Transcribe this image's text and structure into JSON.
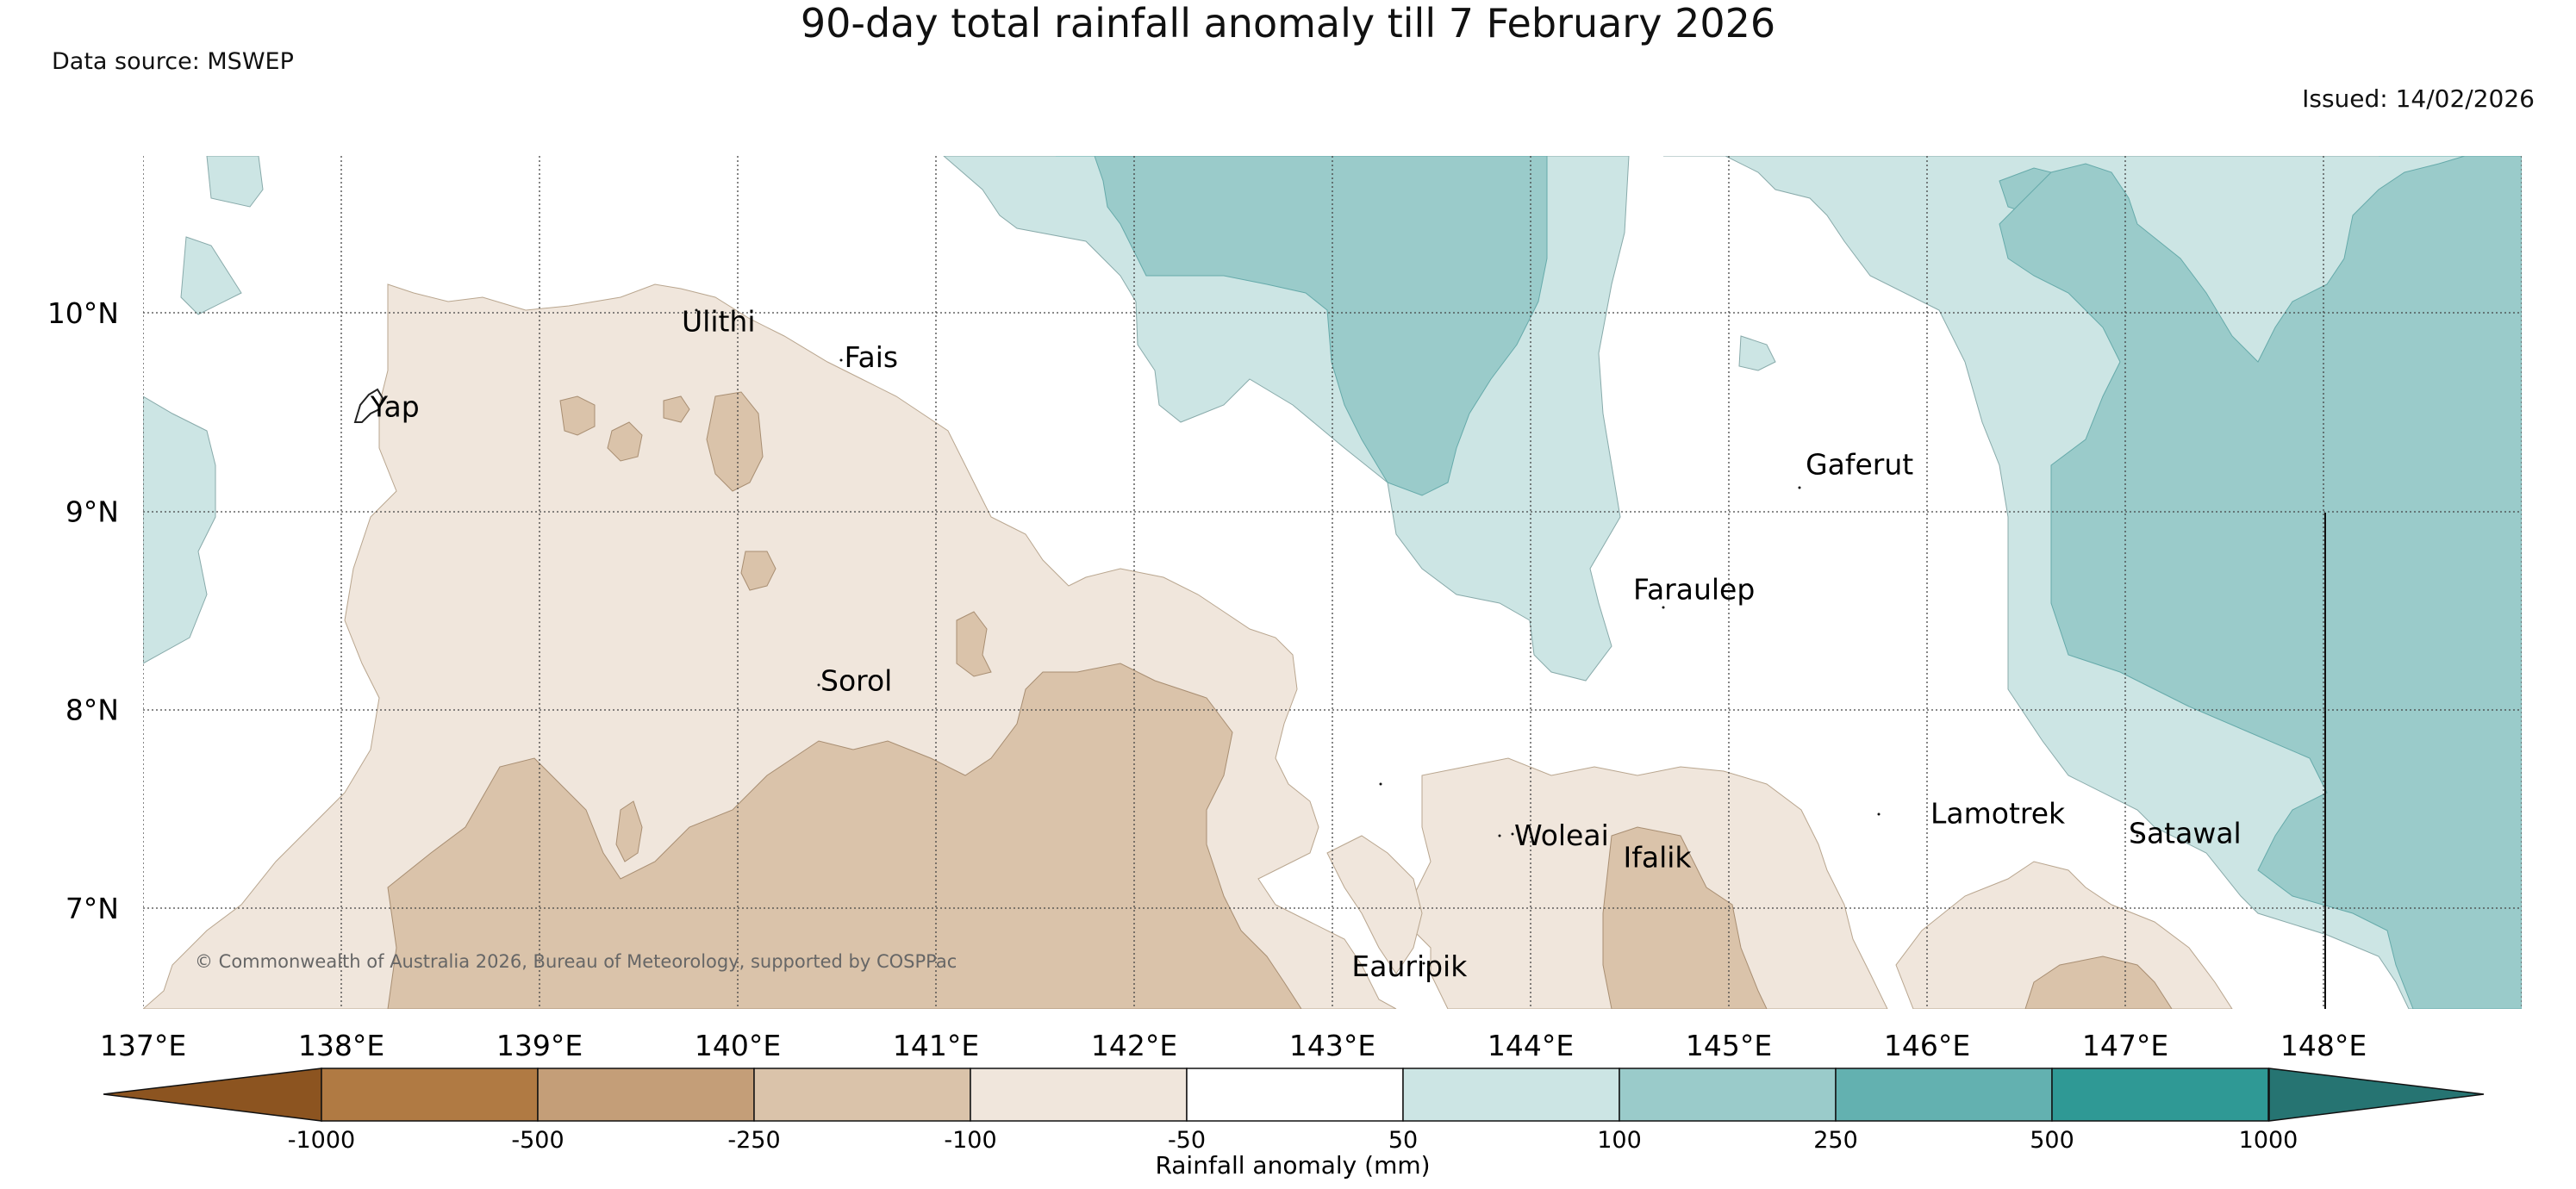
{
  "title": "90-day total rainfall anomaly till 7 February 2026",
  "data_source": "Data source: MSWEP",
  "issued": "Issued: 14/02/2026",
  "copyright": "© Commonwealth of Australia 2026, Bureau of Meteorology, supported by COSPPac",
  "axes": {
    "lon_labels": [
      "137°E",
      "138°E",
      "139°E",
      "140°E",
      "141°E",
      "142°E",
      "143°E",
      "144°E",
      "145°E",
      "146°E",
      "147°E",
      "148°E"
    ],
    "lat_labels": [
      "10°N",
      "9°N",
      "8°N",
      "7°N"
    ],
    "lon_range": [
      137,
      149
    ],
    "lat_range": [
      6.5,
      10.8
    ]
  },
  "places": [
    {
      "name": "Ulithi",
      "lon": 139.7,
      "lat": 9.95
    },
    {
      "name": "Fais",
      "lon": 140.52,
      "lat": 9.77
    },
    {
      "name": "Yap",
      "lon": 138.13,
      "lat": 9.52
    },
    {
      "name": "Gaferut",
      "lon": 145.37,
      "lat": 9.23
    },
    {
      "name": "Faraulep",
      "lon": 144.5,
      "lat": 8.6
    },
    {
      "name": "Sorol",
      "lon": 140.4,
      "lat": 8.14
    },
    {
      "name": "Woleai",
      "lon": 143.9,
      "lat": 7.36
    },
    {
      "name": "Ifalik",
      "lon": 144.45,
      "lat": 7.25
    },
    {
      "name": "Lamotrek",
      "lon": 146.0,
      "lat": 7.47
    },
    {
      "name": "Satawal",
      "lon": 147.0,
      "lat": 7.37
    },
    {
      "name": "Eauripik",
      "lon": 143.08,
      "lat": 6.7
    }
  ],
  "colorbar": {
    "title": "Rainfall anomaly (mm)",
    "ticks": [
      "-1000",
      "-500",
      "-250",
      "-100",
      "-50",
      "50",
      "100",
      "250",
      "500",
      "1000"
    ],
    "colors": {
      "under": "#8c5420",
      "b1": "#b07a43",
      "b2": "#c49e78",
      "b3": "#dac3aa",
      "b4": "#f0e6dc",
      "b5": "#ffffff",
      "b6": "#cce5e4",
      "b7": "#9acbca",
      "b8": "#63b1b0",
      "b9": "#2f9995",
      "over": "#267472"
    }
  }
}
